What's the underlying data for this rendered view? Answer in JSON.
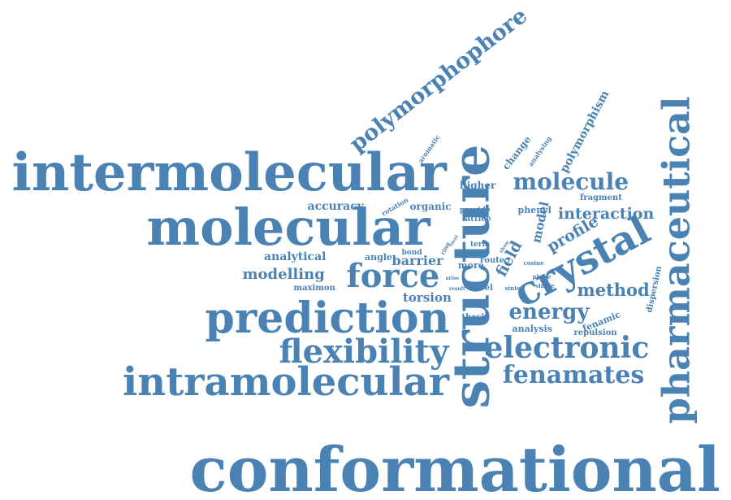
{
  "color": "#4a82b4",
  "words": [
    {
      "text": "conformational"
    },
    {
      "text": "structure"
    },
    {
      "text": "intermolecular"
    },
    {
      "text": "molecular"
    },
    {
      "text": "pharmaceutical"
    },
    {
      "text": "prediction"
    },
    {
      "text": "intramolecular"
    },
    {
      "text": "flexibility"
    },
    {
      "text": "crystal"
    },
    {
      "text": "electronic"
    },
    {
      "text": "force"
    },
    {
      "text": "fenamates"
    },
    {
      "text": "polymorphophore"
    },
    {
      "text": "molecule"
    },
    {
      "text": "energy"
    },
    {
      "text": "interaction"
    },
    {
      "text": "method"
    },
    {
      "text": "profile"
    },
    {
      "text": "modelling"
    },
    {
      "text": "analytical"
    },
    {
      "text": "polymorphism"
    },
    {
      "text": "field"
    },
    {
      "text": "barrier"
    },
    {
      "text": "torsion"
    },
    {
      "text": "accuracy"
    },
    {
      "text": "model"
    },
    {
      "text": "higher"
    },
    {
      "text": "change"
    },
    {
      "text": "phenyl"
    },
    {
      "text": "organic"
    },
    {
      "text": "angle"
    },
    {
      "text": "more"
    },
    {
      "text": "lattice"
    },
    {
      "text": "provide"
    },
    {
      "text": "fragment"
    },
    {
      "text": "fenamic"
    },
    {
      "text": "analysis"
    },
    {
      "text": "repulsion"
    },
    {
      "text": "dispersion"
    },
    {
      "text": "maximon"
    },
    {
      "text": "novel"
    },
    {
      "text": "thesis"
    },
    {
      "text": "route"
    },
    {
      "text": "term"
    },
    {
      "text": "bond"
    },
    {
      "text": "rotation"
    },
    {
      "text": "aromatic"
    },
    {
      "text": "analysing"
    },
    {
      "text": "cosine"
    },
    {
      "text": "phase"
    },
    {
      "text": "single"
    },
    {
      "text": "sinter"
    },
    {
      "text": "show"
    },
    {
      "text": "form"
    },
    {
      "text": "ring"
    },
    {
      "text": "result"
    },
    {
      "text": "arise"
    },
    {
      "text": "small"
    }
  ]
}
